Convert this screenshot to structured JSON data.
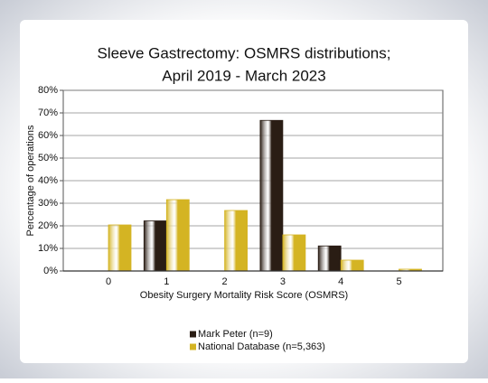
{
  "chart_data": {
    "type": "bar",
    "title": [
      "Sleeve Gastrectomy: OSMRS distributions;",
      "April 2019 - March 2023"
    ],
    "x_label": "Obesity Surgery Mortality Risk Score (OSMRS)",
    "y_label": "Percentage of operations",
    "categories": [
      "0",
      "1",
      "2",
      "3",
      "4",
      "5"
    ],
    "series": [
      {
        "name": "Mark Peter (n=9)",
        "color": "#2a1d14",
        "values": [
          0,
          22.2,
          0,
          66.7,
          11.1,
          0
        ]
      },
      {
        "name": "National Database (n=5,363)",
        "color": "#d4b423",
        "values": [
          20.4,
          31.6,
          26.8,
          16,
          4.8,
          0.8
        ]
      }
    ],
    "ylim": [
      0,
      80
    ],
    "yticks": [
      {
        "value": 0,
        "label": "0%"
      },
      {
        "value": 10,
        "label": "10%"
      },
      {
        "value": 20,
        "label": "20%"
      },
      {
        "value": 30,
        "label": "30%"
      },
      {
        "value": 40,
        "label": "40%"
      },
      {
        "value": 50,
        "label": "50%"
      },
      {
        "value": 60,
        "label": "60%"
      },
      {
        "value": 70,
        "label": "70%"
      },
      {
        "value": 80,
        "label": "80%"
      }
    ],
    "grid": true,
    "legend": "bottom"
  }
}
